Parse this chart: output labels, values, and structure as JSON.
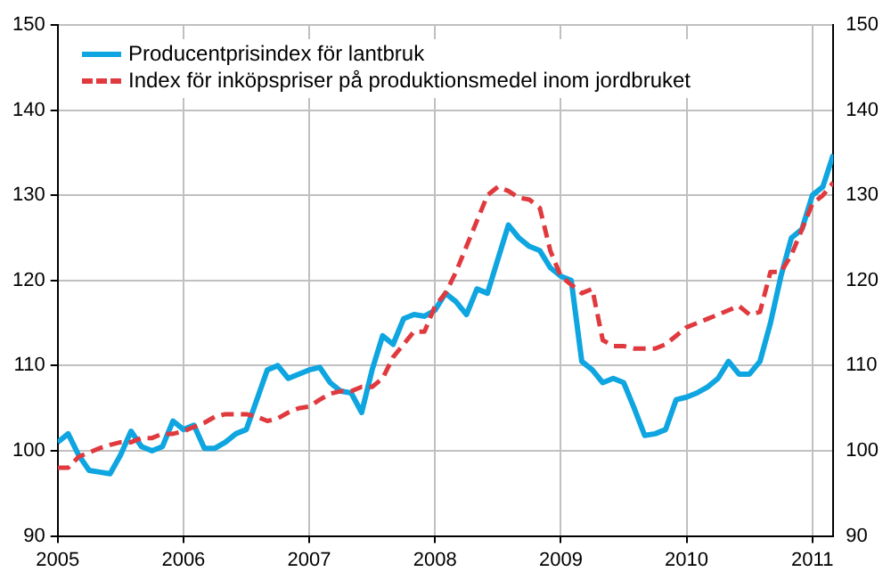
{
  "chart_data": {
    "type": "line",
    "x": [
      "2005-01",
      "2005-02",
      "2005-03",
      "2005-04",
      "2005-05",
      "2005-06",
      "2005-07",
      "2005-08",
      "2005-09",
      "2005-10",
      "2005-11",
      "2005-12",
      "2006-01",
      "2006-02",
      "2006-03",
      "2006-04",
      "2006-05",
      "2006-06",
      "2006-07",
      "2006-08",
      "2006-09",
      "2006-10",
      "2006-11",
      "2006-12",
      "2007-01",
      "2007-02",
      "2007-03",
      "2007-04",
      "2007-05",
      "2007-06",
      "2007-07",
      "2007-08",
      "2007-09",
      "2007-10",
      "2007-11",
      "2007-12",
      "2008-01",
      "2008-02",
      "2008-03",
      "2008-04",
      "2008-05",
      "2008-06",
      "2008-07",
      "2008-08",
      "2008-09",
      "2008-10",
      "2008-11",
      "2008-12",
      "2009-01",
      "2009-02",
      "2009-03",
      "2009-04",
      "2009-05",
      "2009-06",
      "2009-07",
      "2009-08",
      "2009-09",
      "2009-10",
      "2009-11",
      "2009-12",
      "2010-01",
      "2010-02",
      "2010-03",
      "2010-04",
      "2010-05",
      "2010-06",
      "2010-07",
      "2010-08",
      "2010-09",
      "2010-10",
      "2010-11",
      "2010-12",
      "2011-01",
      "2011-02",
      "2011-03"
    ],
    "series": [
      {
        "name": "Producentprisindex för lantbruk",
        "color": "#0ea5e0",
        "line_style": "solid",
        "values": [
          101,
          102,
          99.5,
          97.7,
          97.5,
          97.3,
          99.5,
          102.3,
          100.5,
          100,
          100.5,
          103.5,
          102.5,
          103,
          100.3,
          100.3,
          101,
          102,
          102.5,
          106,
          109.5,
          110,
          108.5,
          109,
          109.5,
          109.8,
          108,
          107,
          106.8,
          104.5,
          109.5,
          113.5,
          112.5,
          115.5,
          116,
          115.8,
          116.5,
          118.5,
          117.5,
          116,
          119,
          118.5,
          122.5,
          126.5,
          125,
          124,
          123.5,
          121.5,
          120.5,
          120,
          110.5,
          109.5,
          108,
          108.5,
          108,
          105,
          101.8,
          102,
          102.5,
          106,
          106.3,
          106.8,
          107.5,
          108.5,
          110.5,
          109,
          109,
          110.5,
          115,
          120.5,
          125,
          126,
          130,
          131,
          134.8
        ]
      },
      {
        "name": "Index för inköpspriser på produktionsmedel inom jordbruket",
        "color": "#e0393e",
        "line_style": "dashed",
        "values": [
          98,
          98,
          99.3,
          99.8,
          100.3,
          100.7,
          101,
          101,
          101.5,
          101.5,
          102,
          102,
          102.3,
          102.8,
          103.3,
          104,
          104.3,
          104.3,
          104.3,
          104,
          103.5,
          103.8,
          104.5,
          105,
          105.2,
          106,
          106.7,
          107,
          107,
          107.5,
          107.5,
          108.5,
          111,
          112.5,
          114,
          114,
          117,
          118.5,
          121,
          124,
          127,
          130,
          131,
          130.5,
          129.7,
          129.5,
          128.5,
          123.5,
          120.5,
          119.5,
          118.5,
          119,
          113,
          112.3,
          112.3,
          112,
          112,
          112,
          112.5,
          113.5,
          114.5,
          115,
          115.5,
          116,
          116.5,
          117,
          116,
          116.3,
          121,
          121,
          123,
          126,
          129,
          130,
          131.5
        ]
      }
    ],
    "xlim": [
      "2005-01",
      "2011-03"
    ],
    "xticks": [
      "2005",
      "2006",
      "2007",
      "2008",
      "2009",
      "2010",
      "2011"
    ],
    "ylim": [
      90,
      150
    ],
    "yticks": [
      90,
      100,
      110,
      120,
      130,
      140,
      150
    ],
    "y2lim": [
      90,
      150
    ],
    "y2ticks": [
      90,
      100,
      110,
      120,
      130,
      140,
      150
    ],
    "grid": true,
    "legend": "top left"
  }
}
